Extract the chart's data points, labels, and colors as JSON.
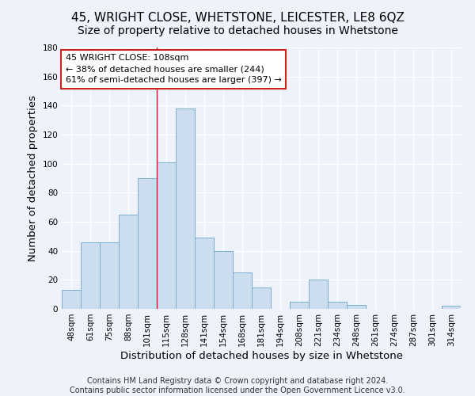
{
  "title1": "45, WRIGHT CLOSE, WHETSTONE, LEICESTER, LE8 6QZ",
  "title2": "Size of property relative to detached houses in Whetstone",
  "xlabel": "Distribution of detached houses by size in Whetstone",
  "ylabel": "Number of detached properties",
  "bar_labels": [
    "48sqm",
    "61sqm",
    "75sqm",
    "88sqm",
    "101sqm",
    "115sqm",
    "128sqm",
    "141sqm",
    "154sqm",
    "168sqm",
    "181sqm",
    "194sqm",
    "208sqm",
    "221sqm",
    "234sqm",
    "248sqm",
    "261sqm",
    "274sqm",
    "287sqm",
    "301sqm",
    "314sqm"
  ],
  "bar_values": [
    13,
    46,
    46,
    65,
    90,
    101,
    138,
    49,
    40,
    25,
    15,
    0,
    5,
    20,
    5,
    3,
    0,
    0,
    0,
    0,
    2
  ],
  "bar_color": "#ccddf0",
  "bar_edge_color": "#7aaed0",
  "highlight_idx": 5,
  "annotation_title": "45 WRIGHT CLOSE: 108sqm",
  "annotation_line1": "← 38% of detached houses are smaller (244)",
  "annotation_line2": "61% of semi-detached houses are larger (397) →",
  "annotation_box_color": "#ffffff",
  "annotation_box_edge_color": "#cc2222",
  "highlight_line_color": "#cc2222",
  "ylim": [
    0,
    180
  ],
  "yticks": [
    0,
    20,
    40,
    60,
    80,
    100,
    120,
    140,
    160,
    180
  ],
  "footer1": "Contains HM Land Registry data © Crown copyright and database right 2024.",
  "footer2": "Contains public sector information licensed under the Open Government Licence v3.0.",
  "background_color": "#eef2fa",
  "grid_color": "#ffffff",
  "title1_fontsize": 11,
  "title2_fontsize": 10,
  "axis_label_fontsize": 9.5,
  "tick_fontsize": 7.5,
  "footer_fontsize": 7,
  "ann_fontsize": 8
}
